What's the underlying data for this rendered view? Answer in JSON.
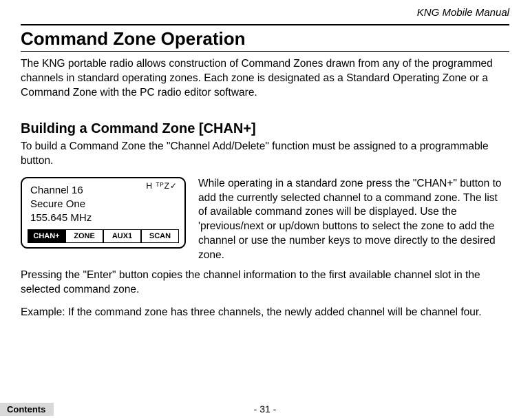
{
  "header": {
    "doc_title": "KNG Mobile Manual"
  },
  "section": {
    "title": "Command Zone Operation",
    "intro": "The KNG portable radio allows construction of Command Zones drawn from any of the programmed channels in standard operating zones. Each zone is designated as a Standard Operating Zone or a Command Zone with the PC radio editor software."
  },
  "subsection": {
    "title": "Building a Command Zone [CHAN+]",
    "p1": "To build a Command Zone the \"Channel Add/Delete\" function must be assigned to a programmable button.",
    "aside": "While operating in a standard zone press the \"CHAN+\" button to add the currently selected channel to a command zone. The list of available command zones will be displayed. Use the 'previous/next or up/down buttons to select the zone to add the channel or use the number keys to move directly to the desired zone.",
    "p2": "Pressing the \"Enter\" button copies the channel information to the first available channel slot in the selected command zone.",
    "p3": "Example: If the command zone has three channels, the newly added channel will be channel four."
  },
  "radio_display": {
    "status": "H ᵀᴾZ✓",
    "line1": "Channel 16",
    "line2": "Secure One",
    "line3": "155.645 MHz",
    "buttons": [
      "CHAN+",
      "ZONE",
      "AUX1",
      "SCAN"
    ],
    "active_index": 0
  },
  "footer": {
    "page": "- 31 -",
    "contents": "Contents"
  }
}
